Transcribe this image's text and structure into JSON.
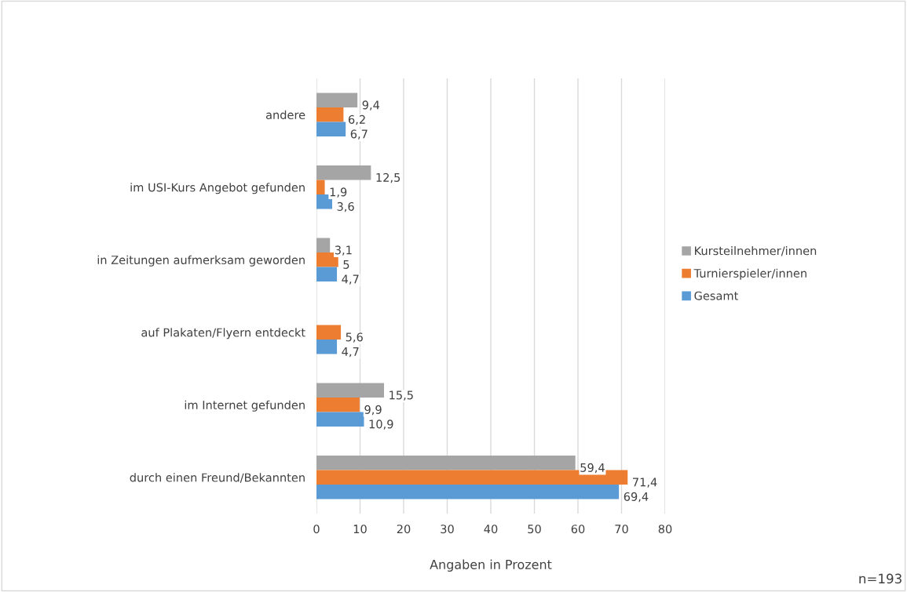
{
  "chart_data": {
    "type": "bar",
    "orientation": "horizontal",
    "xlabel": "Angaben in Prozent",
    "categories": [
      "andere",
      "im USI-Kurs Angebot gefunden",
      "in Zeitungen aufmerksam geworden",
      "auf Plakaten/Flyern entdeckt",
      "im Internet gefunden",
      "durch einen Freund/Bekannten"
    ],
    "series": [
      {
        "name": "Kursteilnehmer/innen",
        "color": "#a5a5a5",
        "values": [
          9.4,
          12.5,
          3.1,
          null,
          15.5,
          59.4
        ],
        "value_labels": [
          "9,4",
          "12,5",
          "3,1",
          null,
          "15,5",
          "59,4"
        ]
      },
      {
        "name": "Turnierspieler/innen",
        "color": "#ed7d31",
        "values": [
          6.2,
          1.9,
          5,
          5.6,
          9.9,
          71.4
        ],
        "value_labels": [
          "6,2",
          "1,9",
          "5",
          "5,6",
          "9,9",
          "71,4"
        ]
      },
      {
        "name": "Gesamt",
        "color": "#5b9bd5",
        "values": [
          6.7,
          3.6,
          4.7,
          4.7,
          10.9,
          69.4
        ],
        "value_labels": [
          "6,7",
          "3,6",
          "4,7",
          "4,7",
          "10,9",
          "69,4"
        ]
      }
    ],
    "xlim": [
      0,
      80
    ],
    "xticks": [
      0,
      10,
      20,
      30,
      40,
      50,
      60,
      70,
      80
    ],
    "grid": "x",
    "legend": "right",
    "annotations": [
      "n=193"
    ]
  }
}
